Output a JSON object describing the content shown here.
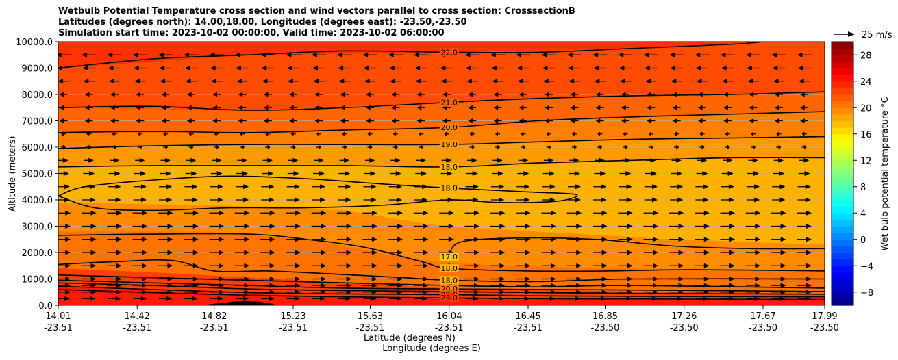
{
  "chart_data": {
    "type": "contour",
    "title_lines": [
      "Wetbulb Potential Temperature cross section and wind vectors parallel to cross section: CrosssectionB",
      "Latitudes (degrees north): 14.00,18.00, Longitudes (degrees east): -23.50,-23.50",
      "Simulation start time: 2023-10-02 00:00:00, Valid time: 2023-10-02 06:00:00"
    ],
    "xlabel_lat": "Latitude (degrees N)",
    "xlabel_lon": "Longitude (degrees E)",
    "ylabel": "Altitude (meters)",
    "xlim": [
      14.01,
      17.99
    ],
    "ylim": [
      0,
      10000
    ],
    "x_ticks": [
      {
        "lat": 14.01,
        "lat_label": "14.01",
        "lon_label": "-23.51"
      },
      {
        "lat": 14.42,
        "lat_label": "14.42",
        "lon_label": "-23.51"
      },
      {
        "lat": 14.82,
        "lat_label": "14.82",
        "lon_label": "-23.51"
      },
      {
        "lat": 15.23,
        "lat_label": "15.23",
        "lon_label": "-23.51"
      },
      {
        "lat": 15.63,
        "lat_label": "15.63",
        "lon_label": "-23.51"
      },
      {
        "lat": 16.04,
        "lat_label": "16.04",
        "lon_label": "-23.51"
      },
      {
        "lat": 16.45,
        "lat_label": "16.45",
        "lon_label": "-23.51"
      },
      {
        "lat": 16.85,
        "lat_label": "16.85",
        "lon_label": "-23.50"
      },
      {
        "lat": 17.26,
        "lat_label": "17.26",
        "lon_label": "-23.50"
      },
      {
        "lat": 17.67,
        "lat_label": "17.67",
        "lon_label": "-23.50"
      },
      {
        "lat": 17.99,
        "lat_label": "17.99",
        "lon_label": "-23.50"
      }
    ],
    "y_ticks": [
      0,
      1000,
      2000,
      3000,
      4000,
      5000,
      6000,
      7000,
      8000,
      9000,
      10000
    ],
    "y_tick_labels": [
      "0.0",
      "1000.0",
      "2000.0",
      "3000.0",
      "4000.0",
      "5000.0",
      "6000.0",
      "7000.0",
      "8000.0",
      "9000.0",
      "10000.0"
    ],
    "grid": "horizontal",
    "colorbar": {
      "label": "Wet bulb potential temperature °C",
      "range": [
        -10,
        30
      ],
      "ticks": [
        -8,
        -4,
        0,
        4,
        8,
        12,
        16,
        20,
        24,
        28
      ],
      "tick_labels": [
        "−8",
        "−4",
        "0",
        "4",
        "8",
        "12",
        "16",
        "20",
        "24",
        "28"
      ],
      "colormap": "jet"
    },
    "quiver_key": {
      "label": "25 m/s",
      "speed": 25
    },
    "contours": [
      {
        "level": 22,
        "label": "22.0",
        "points": [
          [
            14.01,
            9000
          ],
          [
            14.5,
            9350
          ],
          [
            15.0,
            9500
          ],
          [
            15.5,
            9650
          ],
          [
            16.04,
            9600
          ],
          [
            16.5,
            9600
          ],
          [
            17.0,
            9750
          ],
          [
            17.5,
            9900
          ],
          [
            17.67,
            10000
          ]
        ]
      },
      {
        "level": 21,
        "label": "21.0",
        "points": [
          [
            14.01,
            7500
          ],
          [
            14.5,
            7550
          ],
          [
            15.0,
            7400
          ],
          [
            15.5,
            7500
          ],
          [
            16.04,
            7700
          ],
          [
            16.5,
            7850
          ],
          [
            17.0,
            7950
          ],
          [
            17.5,
            8000
          ],
          [
            17.99,
            8100
          ]
        ]
      },
      {
        "level": 20,
        "label": "20.0",
        "points": [
          [
            14.01,
            6550
          ],
          [
            14.5,
            6600
          ],
          [
            15.0,
            6550
          ],
          [
            15.5,
            6650
          ],
          [
            16.04,
            6750
          ],
          [
            16.5,
            7000
          ],
          [
            17.0,
            7150
          ],
          [
            17.5,
            7250
          ],
          [
            17.99,
            7350
          ]
        ]
      },
      {
        "level": 19,
        "label": "19.0",
        "points": [
          [
            14.01,
            5950
          ],
          [
            14.5,
            6050
          ],
          [
            15.0,
            6100
          ],
          [
            15.5,
            6100
          ],
          [
            16.04,
            6100
          ],
          [
            16.5,
            6200
          ],
          [
            17.0,
            6300
          ],
          [
            17.5,
            6350
          ],
          [
            17.99,
            6400
          ]
        ]
      },
      {
        "level": 18,
        "label": "18.0",
        "points": [
          [
            14.01,
            5250
          ],
          [
            14.5,
            5300
          ],
          [
            15.0,
            5300
          ],
          [
            15.5,
            5300
          ],
          [
            16.04,
            5250
          ],
          [
            16.5,
            5400
          ],
          [
            17.0,
            5500
          ],
          [
            17.5,
            5600
          ],
          [
            17.99,
            5600
          ]
        ]
      },
      {
        "level": 18,
        "label": "18.0",
        "points": [
          [
            14.01,
            4150
          ],
          [
            14.15,
            4500
          ],
          [
            14.5,
            4750
          ],
          [
            14.9,
            4900
          ],
          [
            15.3,
            4800
          ],
          [
            15.7,
            4600
          ],
          [
            16.04,
            4450
          ],
          [
            16.45,
            4300
          ],
          [
            16.7,
            4200
          ],
          [
            16.6,
            3950
          ],
          [
            16.3,
            3900
          ],
          [
            16.04,
            4000
          ],
          [
            15.7,
            3800
          ],
          [
            15.3,
            3700
          ],
          [
            14.9,
            3700
          ],
          [
            14.5,
            3600
          ],
          [
            14.2,
            3700
          ],
          [
            14.01,
            4150
          ]
        ]
      },
      {
        "level": 17,
        "label": "17.0",
        "points": [
          [
            16.04,
            1850
          ],
          [
            16.1,
            2400
          ],
          [
            16.4,
            2550
          ],
          [
            16.8,
            2500
          ],
          [
            17.2,
            2250
          ],
          [
            17.6,
            2150
          ],
          [
            17.99,
            2150
          ]
        ]
      },
      {
        "level": 18,
        "label": "18.0",
        "points": [
          [
            14.01,
            2650
          ],
          [
            14.5,
            2700
          ],
          [
            15.0,
            2700
          ],
          [
            15.3,
            2500
          ],
          [
            15.6,
            2200
          ],
          [
            15.9,
            1650
          ],
          [
            16.04,
            1400
          ],
          [
            16.45,
            1300
          ],
          [
            16.85,
            1300
          ],
          [
            17.3,
            1350
          ],
          [
            17.99,
            1300
          ]
        ]
      },
      {
        "level": 18,
        "label": "18.0",
        "points": [
          [
            14.01,
            1550
          ],
          [
            14.3,
            1650
          ],
          [
            14.6,
            1700
          ],
          [
            14.82,
            1300
          ],
          [
            15.1,
            1300
          ],
          [
            15.4,
            1200
          ],
          [
            15.8,
            1050
          ],
          [
            16.04,
            950
          ],
          [
            16.5,
            900
          ],
          [
            17.0,
            1000
          ],
          [
            17.99,
            1000
          ]
        ]
      },
      {
        "level": 19,
        "label": "",
        "points": [
          [
            14.01,
            1150
          ],
          [
            14.5,
            1050
          ],
          [
            15.0,
            950
          ],
          [
            15.5,
            850
          ],
          [
            16.04,
            750
          ],
          [
            16.5,
            700
          ],
          [
            17.0,
            750
          ],
          [
            17.99,
            650
          ]
        ]
      },
      {
        "level": 20,
        "label": "20.0",
        "points": [
          [
            14.01,
            950
          ],
          [
            14.5,
            850
          ],
          [
            15.0,
            750
          ],
          [
            15.5,
            650
          ],
          [
            16.04,
            620
          ],
          [
            16.5,
            600
          ],
          [
            17.0,
            580
          ],
          [
            17.99,
            520
          ]
        ]
      },
      {
        "level": 21,
        "label": "",
        "points": [
          [
            14.01,
            850
          ],
          [
            14.5,
            750
          ],
          [
            15.0,
            620
          ],
          [
            15.5,
            560
          ],
          [
            16.04,
            520
          ],
          [
            16.5,
            480
          ],
          [
            17.0,
            450
          ],
          [
            17.99,
            420
          ]
        ]
      },
      {
        "level": 22,
        "label": "22.0",
        "points": [
          [
            14.01,
            720
          ],
          [
            14.5,
            600
          ],
          [
            15.0,
            480
          ],
          [
            15.5,
            430
          ],
          [
            16.04,
            400
          ],
          [
            16.5,
            360
          ],
          [
            17.0,
            340
          ],
          [
            17.99,
            320
          ]
        ]
      },
      {
        "level": 23,
        "label": "23.0",
        "points": [
          [
            14.01,
            600
          ],
          [
            14.5,
            480
          ],
          [
            15.0,
            380
          ],
          [
            15.5,
            320
          ],
          [
            16.04,
            280
          ],
          [
            16.5,
            250
          ],
          [
            17.0,
            240
          ],
          [
            17.99,
            220
          ]
        ]
      }
    ],
    "fill_bands": [
      {
        "value": 24,
        "upper": [
          [
            14.01,
            700
          ],
          [
            14.5,
            550
          ],
          [
            15.0,
            420
          ],
          [
            15.5,
            340
          ],
          [
            16.04,
            280
          ],
          [
            17.0,
            240
          ],
          [
            17.99,
            220
          ]
        ]
      },
      {
        "value": 22.5,
        "upper": [
          [
            14.01,
            1400
          ],
          [
            14.5,
            1250
          ],
          [
            15.0,
            1050
          ],
          [
            15.5,
            850
          ],
          [
            16.04,
            650
          ],
          [
            17.0,
            520
          ],
          [
            17.99,
            450
          ]
        ]
      },
      {
        "value": 20.5,
        "upper": [
          [
            14.01,
            2800
          ],
          [
            14.8,
            2800
          ],
          [
            15.3,
            2500
          ],
          [
            15.9,
            1700
          ],
          [
            16.3,
            1500
          ],
          [
            17.0,
            1400
          ],
          [
            17.99,
            1250
          ]
        ]
      },
      {
        "value": 19.5,
        "upper": [
          [
            14.01,
            3900
          ],
          [
            14.8,
            3800
          ],
          [
            15.5,
            3600
          ],
          [
            16.0,
            3000
          ],
          [
            16.5,
            2800
          ],
          [
            17.2,
            2500
          ],
          [
            17.99,
            2300
          ]
        ]
      },
      {
        "value": 18,
        "upper": [
          [
            14.01,
            5300
          ],
          [
            15.0,
            5300
          ],
          [
            16.04,
            5300
          ],
          [
            17.0,
            5500
          ],
          [
            17.99,
            5600
          ]
        ]
      },
      {
        "value": 19,
        "upper": [
          [
            14.01,
            6000
          ],
          [
            15.0,
            6100
          ],
          [
            16.04,
            6100
          ],
          [
            17.0,
            6300
          ],
          [
            17.99,
            6400
          ]
        ]
      },
      {
        "value": 20,
        "upper": [
          [
            14.01,
            6550
          ],
          [
            15.0,
            6550
          ],
          [
            16.04,
            6750
          ],
          [
            17.0,
            7150
          ],
          [
            17.99,
            7350
          ]
        ]
      },
      {
        "value": 21,
        "upper": [
          [
            14.01,
            7500
          ],
          [
            15.0,
            7400
          ],
          [
            16.04,
            7700
          ],
          [
            17.0,
            7950
          ],
          [
            17.99,
            8100
          ]
        ]
      },
      {
        "value": 22,
        "upper": [
          [
            14.01,
            9000
          ],
          [
            15.0,
            9500
          ],
          [
            16.04,
            9600
          ],
          [
            17.0,
            9750
          ],
          [
            17.67,
            10000
          ],
          [
            17.99,
            10000
          ]
        ]
      },
      {
        "value": 23,
        "upper": [
          [
            14.01,
            10000
          ],
          [
            17.99,
            10000
          ]
        ]
      }
    ],
    "terrain": {
      "points": [
        [
          14.75,
          0
        ],
        [
          14.85,
          80
        ],
        [
          14.95,
          160
        ],
        [
          15.05,
          140
        ],
        [
          15.12,
          60
        ],
        [
          15.15,
          0
        ]
      ]
    },
    "wind_vectors": {
      "altitudes": [
        250,
        500,
        750,
        1000,
        1500,
        2000,
        2500,
        3000,
        3500,
        4000,
        4500,
        5000,
        5500,
        6000,
        6500,
        7000,
        7500,
        8000,
        8500,
        9000,
        9500
      ],
      "u_profile": [
        8,
        9,
        9,
        9,
        9,
        9,
        9,
        9,
        9,
        8,
        8,
        7,
        6,
        3,
        -3,
        -5,
        -5,
        -5,
        -7,
        -8,
        -9
      ]
    }
  }
}
